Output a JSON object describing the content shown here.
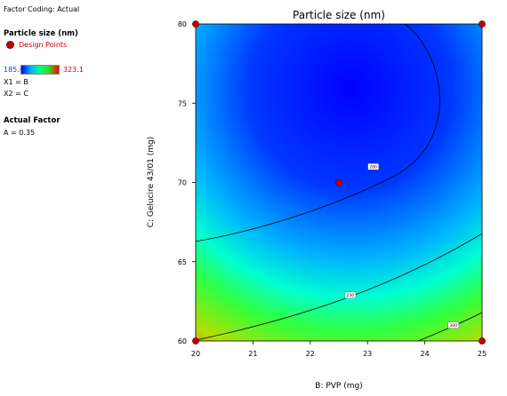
{
  "panel": {
    "factor_coding": "Factor Coding: Actual",
    "response_title": "Particle size (nm)",
    "design_points_label": "Design Points",
    "range_low": "185.6",
    "range_high": "323.1",
    "x1_label": "X1 = B",
    "x2_label": "X2 = C",
    "actual_factor_title": "Actual Factor",
    "actual_factor_value": "A = 0.35"
  },
  "colors": {
    "low": "#0000ff",
    "mid_low": "#00b0ff",
    "mid": "#00ff80",
    "mid_high": "#40d020",
    "high": "#ff0000",
    "design_point": "#c00000",
    "low_value_text": "#1a3cc8",
    "high_value_text": "#d40000"
  },
  "chart_data": {
    "type": "heatmap",
    "subtype": "contour",
    "title": "Particle size (nm)",
    "xlabel": "B: PVP (mg)",
    "ylabel": "C: Gelucire 43/01 (mg)",
    "xlim": [
      20,
      25
    ],
    "ylim": [
      60,
      80
    ],
    "x_ticks": [
      "20",
      "21",
      "22",
      "23",
      "24",
      "25"
    ],
    "y_ticks": [
      "60",
      "65",
      "70",
      "75",
      "80"
    ],
    "color_range": [
      185.6,
      323.1
    ],
    "contour_labels": [
      "200",
      "250",
      "300"
    ],
    "design_points": [
      {
        "x": 20,
        "y": 80
      },
      {
        "x": 25,
        "y": 80
      },
      {
        "x": 22.5,
        "y": 70
      },
      {
        "x": 20,
        "y": 60
      },
      {
        "x": 25,
        "y": 60
      }
    ]
  }
}
